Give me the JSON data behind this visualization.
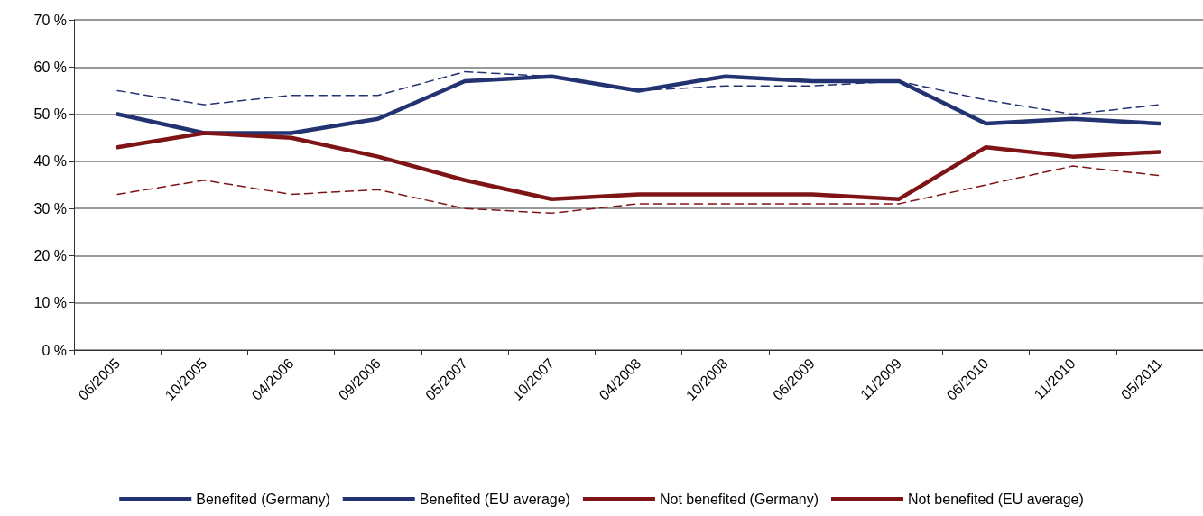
{
  "chart_data": {
    "type": "line",
    "categories": [
      "06/2005",
      "10/2005",
      "04/2006",
      "09/2006",
      "05/2007",
      "10/2007",
      "04/2008",
      "10/2008",
      "06/2009",
      "11/2009",
      "06/2010",
      "11/2010",
      "05/2011"
    ],
    "series": [
      {
        "name": "Benefited (Germany)",
        "color": "#233372",
        "line_style": "solid",
        "values": [
          50,
          46,
          46,
          49,
          57,
          58,
          55,
          58,
          57,
          57,
          48,
          49,
          48
        ]
      },
      {
        "name": "Benefited (EU average)",
        "color": "#233372",
        "line_style": "dashed",
        "values": [
          55,
          52,
          54,
          54,
          59,
          58,
          55,
          56,
          56,
          57,
          53,
          50,
          52
        ]
      },
      {
        "name": "Not benefited (Germany)",
        "color": "#7f1416",
        "line_style": "solid",
        "values": [
          43,
          46,
          45,
          41,
          36,
          32,
          33,
          33,
          33,
          32,
          43,
          41,
          42
        ]
      },
      {
        "name": "Not benefited (EU average)",
        "color": "#7f1416",
        "line_style": "dashed",
        "values": [
          33,
          36,
          33,
          34,
          30,
          29,
          31,
          31,
          31,
          31,
          35,
          39,
          37
        ]
      }
    ],
    "ylim": [
      0,
      70
    ],
    "yticks": [
      {
        "value": 0,
        "label": "0 %"
      },
      {
        "value": 10,
        "label": "10 %"
      },
      {
        "value": 20,
        "label": "20 %"
      },
      {
        "value": 30,
        "label": "30 %"
      },
      {
        "value": 40,
        "label": "40 %"
      },
      {
        "value": 50,
        "label": "50 %"
      },
      {
        "value": 60,
        "label": "60 %"
      },
      {
        "value": 70,
        "label": "70 %"
      }
    ],
    "grid": "y",
    "legend": "bottom",
    "marker": "none"
  }
}
